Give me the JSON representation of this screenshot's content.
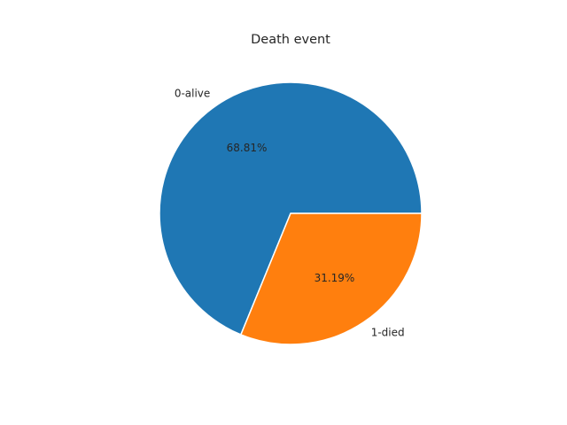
{
  "chart_data": {
    "type": "pie",
    "title": "Death event",
    "slices": [
      {
        "label": "0-alive",
        "value": 68.81,
        "pct_label": "68.81%",
        "color": "#1f77b4"
      },
      {
        "label": "1-died",
        "value": 31.19,
        "pct_label": "31.19%",
        "color": "#ff7f0e"
      }
    ],
    "start_angle_deg": 0,
    "direction": "counterclockwise",
    "slice_edge_color": "#ffffff"
  }
}
